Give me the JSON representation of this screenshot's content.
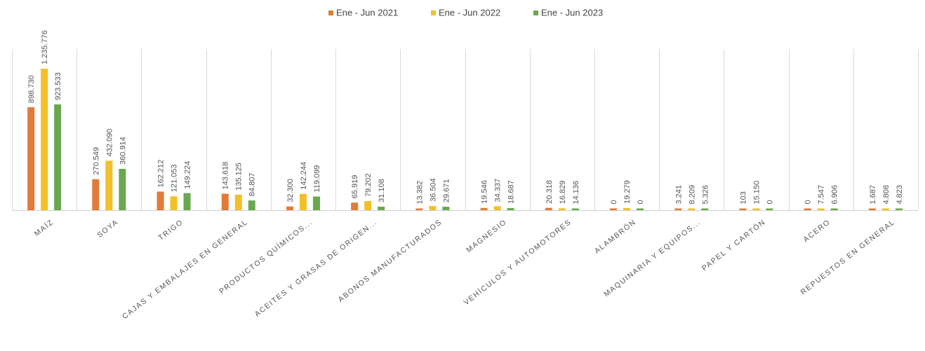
{
  "chart_data": {
    "type": "bar",
    "title": "",
    "xlabel": "",
    "ylabel": "",
    "ylim": [
      0,
      1400000
    ],
    "grid": true,
    "legend_position": "top-center",
    "categories": [
      "MAÍZ",
      "SOYA",
      "TRIGO",
      "CAJAS Y EMBALAJES EN GENERAL",
      "PRODUCTOS QUÍMICOS...",
      "ACEITES Y GRASAS DE ORIGEN...",
      "ABONOS MANUFACTURADOS",
      "MAGNESIO",
      "VEHÍCULOS Y AUTOMOTORES",
      "ALAMBRÓN",
      "MAQUINARIA Y EQUIPOS...",
      "PAPEL Y CARTÓN",
      "ACERO",
      "REPUESTOS EN GENERAL"
    ],
    "series": [
      {
        "name": "Ene - Jun 2021",
        "color": "#e07b39",
        "values": [
          898730,
          270549,
          162212,
          143618,
          32300,
          65919,
          13382,
          19546,
          20318,
          0,
          3241,
          103,
          0,
          1687
        ],
        "labels": [
          "898.730",
          "270.549",
          "162.212",
          "143.618",
          "32.300",
          "65.919",
          "13.382",
          "19.546",
          "20.318",
          "0",
          "3.241",
          "103",
          "0",
          "1.687"
        ]
      },
      {
        "name": "Ene - Jun 2022",
        "color": "#f2c029",
        "values": [
          1235776,
          432090,
          121053,
          135125,
          142244,
          79202,
          36504,
          34337,
          16829,
          19279,
          8209,
          15150,
          7547,
          4808
        ],
        "labels": [
          "1.235.776",
          "432.090",
          "121.053",
          "135.125",
          "142.244",
          "79.202",
          "36.504",
          "34.337",
          "16.829",
          "19.279",
          "8.209",
          "15.150",
          "7.547",
          "4.808"
        ]
      },
      {
        "name": "Ene - Jun 2023",
        "color": "#6aa84f",
        "values": [
          923533,
          360914,
          149224,
          84807,
          119099,
          31108,
          29671,
          18687,
          14136,
          0,
          5326,
          0,
          6906,
          4823
        ],
        "labels": [
          "923.533",
          "360.914",
          "149.224",
          "84.807",
          "119.099",
          "31.108",
          "29.671",
          "18.687",
          "14.136",
          "0",
          "5.326",
          "0",
          "6.906",
          "4.823"
        ]
      }
    ]
  }
}
